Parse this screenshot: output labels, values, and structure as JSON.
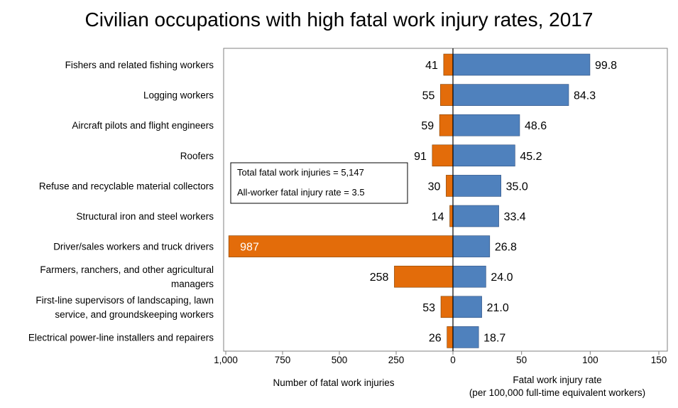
{
  "title": "Civilian occupations with high fatal work injury rates, 2017",
  "colors": {
    "injuries": "#E36C0A",
    "rate": "#4F81BD"
  },
  "note_box": {
    "line1": "Total fatal work injuries = 5,147",
    "line2": "All-worker fatal injury rate = 3.5"
  },
  "chart_data": {
    "type": "bar",
    "orientation": "horizontal",
    "layout": "back-to-back",
    "title": "Civilian occupations with high fatal work injury rates, 2017",
    "categories": [
      [
        "Fishers and related fishing workers"
      ],
      [
        "Logging workers"
      ],
      [
        "Aircraft pilots and flight engineers"
      ],
      [
        "Roofers"
      ],
      [
        "Refuse and recyclable material collectors"
      ],
      [
        "Structural iron and steel workers"
      ],
      [
        "Driver/sales workers and truck drivers"
      ],
      [
        "Farmers, ranchers, and other agricultural",
        "managers"
      ],
      [
        "First-line supervisors of landscaping, lawn",
        "service, and groundskeeping workers"
      ],
      [
        "Electrical power-line installers and repairers"
      ]
    ],
    "series": [
      {
        "name": "Number of fatal work injuries",
        "values": [
          41,
          55,
          59,
          91,
          30,
          14,
          987,
          258,
          53,
          26
        ],
        "labels": [
          "41",
          "55",
          "59",
          "91",
          "30",
          "14",
          "987",
          "258",
          "53",
          "26"
        ],
        "axis": "left",
        "xlim": [
          1000,
          0
        ],
        "ticks": [
          1000,
          750,
          500,
          250,
          0
        ],
        "tick_labels": [
          "1,000",
          "750",
          "500",
          "250",
          "0"
        ],
        "xlabel": "Number of fatal work injuries"
      },
      {
        "name": "Fatal work injury rate",
        "values": [
          99.8,
          84.3,
          48.6,
          45.2,
          35.0,
          33.4,
          26.8,
          24.0,
          21.0,
          18.7
        ],
        "labels": [
          "99.8",
          "84.3",
          "48.6",
          "45.2",
          "35.0",
          "33.4",
          "26.8",
          "24.0",
          "21.0",
          "18.7"
        ],
        "axis": "right",
        "xlim": [
          0,
          150
        ],
        "ticks": [
          0,
          50,
          100,
          150
        ],
        "tick_labels": [
          "0",
          "50",
          "100",
          "150"
        ],
        "xlabel": [
          "Fatal work injury rate",
          "(per 100,000 full-time equivalent workers)"
        ]
      }
    ],
    "grid": false,
    "legend": "none"
  }
}
